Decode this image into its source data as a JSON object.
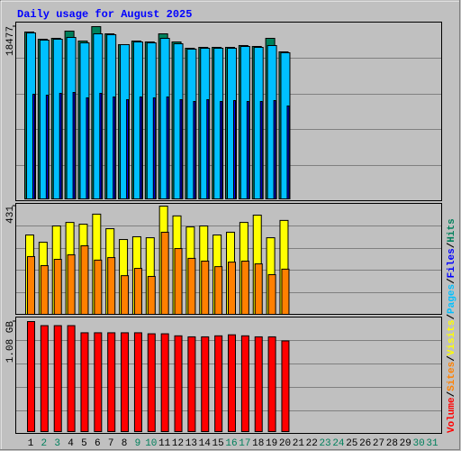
{
  "title": "Daily usage for August 2025",
  "legend_separator": "/",
  "chart_data": [
    {
      "type": "bar",
      "series": [
        {
          "name": "Hits",
          "color": "#00805c",
          "values": [
            17897,
            17123,
            17220,
            17994,
            16930,
            18477,
            17703,
            16543,
            16930,
            16833,
            17703,
            16833,
            16156,
            16252,
            16252,
            16252,
            16446,
            16349,
            17220,
            15769,
            null,
            null,
            null,
            null,
            null,
            null,
            null,
            null,
            null,
            null,
            null
          ]
        },
        {
          "name": "Files",
          "color": "#0000ff",
          "values": [
            11222,
            11125,
            11319,
            11415,
            10835,
            11319,
            10932,
            10641,
            10932,
            10835,
            10932,
            10641,
            10448,
            10641,
            10448,
            10545,
            10448,
            10448,
            10545,
            9964,
            null,
            null,
            null,
            null,
            null,
            null,
            null,
            null,
            null,
            null,
            null
          ]
        },
        {
          "name": "Pages",
          "color": "#00c0ff",
          "values": [
            17800,
            17026,
            17123,
            17317,
            16736,
            17703,
            17607,
            16543,
            16833,
            16736,
            17220,
            16639,
            16059,
            16156,
            16156,
            16156,
            16349,
            16252,
            16446,
            15672,
            null,
            null,
            null,
            null,
            null,
            null,
            null,
            null,
            null,
            null,
            null
          ]
        }
      ],
      "ylim": [
        0,
        18477
      ],
      "yticks": [
        18477
      ],
      "grid": true
    },
    {
      "type": "bar",
      "series": [
        {
          "name": "Visits",
          "color": "#ffff00",
          "values": [
            316,
            287,
            352,
            366,
            359,
            399,
            341,
            298,
            309,
            305,
            431,
            392,
            348,
            352,
            316,
            327,
            366,
            395,
            305,
            374,
            null,
            null,
            null,
            null,
            null,
            null,
            null,
            null,
            null,
            null,
            null
          ]
        },
        {
          "name": "Sites",
          "color": "#ff8000",
          "values": [
            230,
            194,
            219,
            237,
            273,
            216,
            226,
            154,
            183,
            151,
            327,
            262,
            223,
            212,
            190,
            208,
            212,
            201,
            158,
            180,
            null,
            null,
            null,
            null,
            null,
            null,
            null,
            null,
            null,
            null,
            null
          ]
        }
      ],
      "ylim": [
        0,
        431
      ],
      "yticks": [
        431
      ],
      "grid": true
    },
    {
      "type": "bar",
      "series": [
        {
          "name": "Volume",
          "color": "#ff0000",
          "values": [
            1.08,
            1.04,
            1.04,
            1.04,
            0.97,
            0.97,
            0.97,
            0.97,
            0.97,
            0.96,
            0.96,
            0.94,
            0.93,
            0.93,
            0.94,
            0.95,
            0.94,
            0.93,
            0.93,
            0.89,
            null,
            null,
            null,
            null,
            null,
            null,
            null,
            null,
            null,
            null,
            null
          ]
        }
      ],
      "ylim": [
        0,
        1.08
      ],
      "yticks": [
        {
          "value": 1.08,
          "label": "1.08 GB"
        }
      ],
      "grid": true,
      "categories": [
        "1",
        "2",
        "3",
        "4",
        "5",
        "6",
        "7",
        "8",
        "9",
        "10",
        "11",
        "12",
        "13",
        "14",
        "15",
        "16",
        "17",
        "18",
        "19",
        "20",
        "21",
        "22",
        "23",
        "24",
        "25",
        "26",
        "27",
        "28",
        "29",
        "30",
        "31"
      ],
      "category_colors": [
        "#000000",
        "#00805c",
        "#00805c",
        "#000000",
        "#000000",
        "#000000",
        "#000000",
        "#000000",
        "#00805c",
        "#00805c",
        "#000000",
        "#000000",
        "#000000",
        "#000000",
        "#000000",
        "#00805c",
        "#00805c",
        "#000000",
        "#000000",
        "#000000",
        "#000000",
        "#000000",
        "#00805c",
        "#00805c",
        "#000000",
        "#000000",
        "#000000",
        "#000000",
        "#000000",
        "#00805c",
        "#00805c"
      ]
    }
  ]
}
